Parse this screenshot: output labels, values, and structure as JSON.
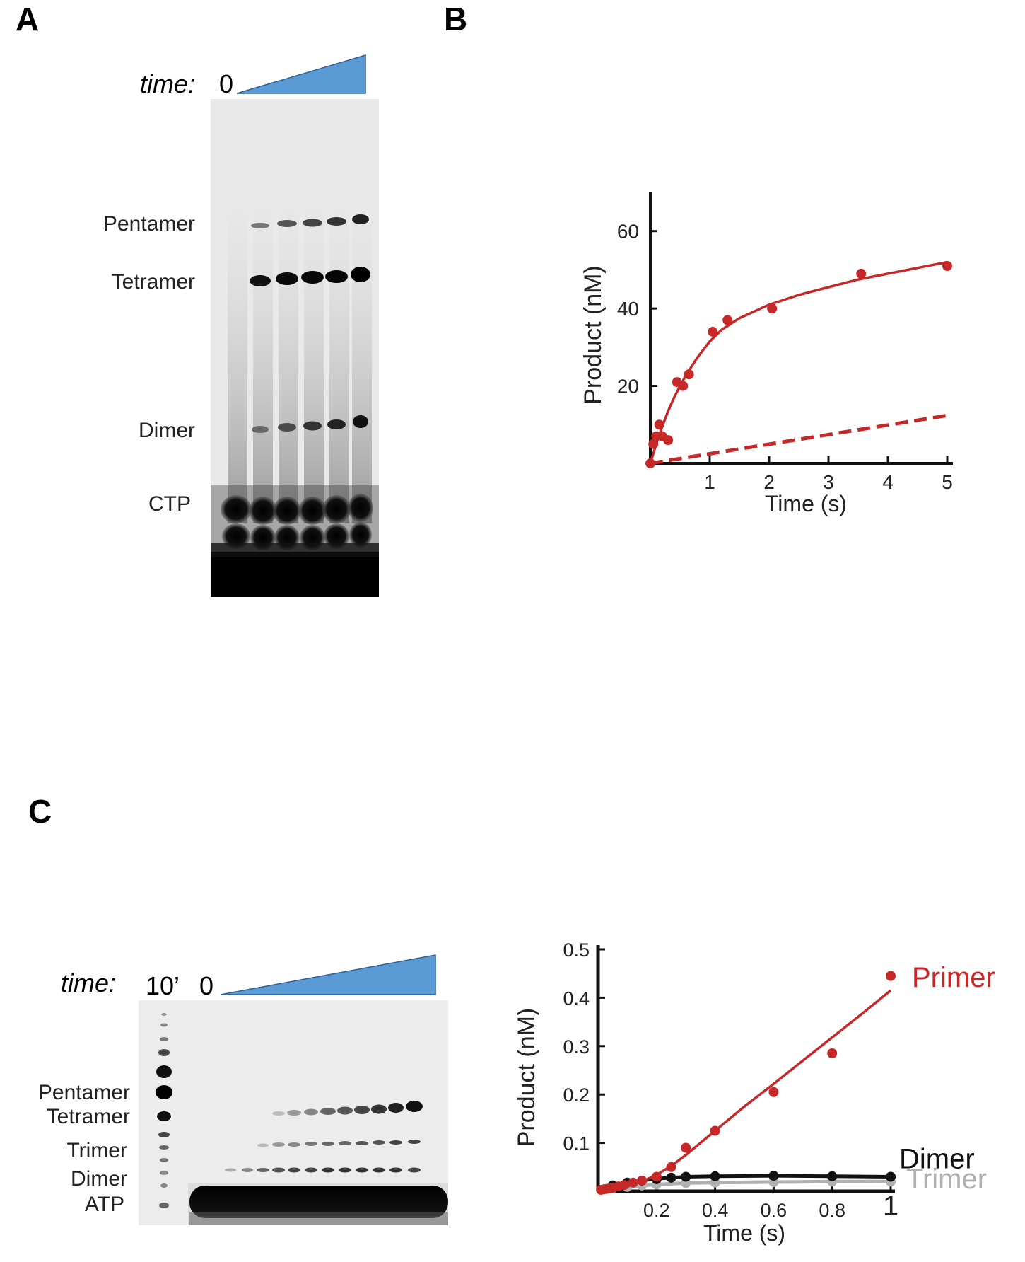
{
  "panels": {
    "a": "A",
    "b": "B",
    "c": "C"
  },
  "panel_a": {
    "time_label": "time:",
    "time_zero": "0",
    "bands": [
      "Pentamer",
      "Tetramer",
      "Dimer",
      "CTP"
    ]
  },
  "panel_c": {
    "time_label": "time:",
    "marker_label": "10’",
    "time_zero": "0",
    "bands": [
      "Pentamer",
      "Tetramer",
      "Trimer",
      "Dimer",
      "ATP"
    ]
  },
  "colors": {
    "red": "#c62828",
    "wedge": "#5b9bd5",
    "black": "#111111",
    "grey": "#b0b0b0"
  },
  "chart_data": [
    {
      "type": "scatter",
      "xlabel": "Time (s)",
      "ylabel": "Product (nM)",
      "xlim": [
        0,
        5
      ],
      "ylim": [
        0,
        70
      ],
      "xticks": [
        "1",
        "2",
        "3",
        "4",
        "5"
      ],
      "yticks": [
        "20",
        "40",
        "60"
      ],
      "series": [
        {
          "x": [
            0,
            0.05,
            0.1,
            0.15,
            0.2,
            0.3,
            0.45,
            0.55,
            0.65,
            1.05,
            1.3,
            2.05,
            3.55,
            5.0
          ],
          "y": [
            0,
            5,
            7,
            10,
            7,
            6,
            21,
            20,
            23,
            34,
            37,
            40,
            49,
            51
          ],
          "fit_x": [
            0,
            0.1,
            0.2,
            0.3,
            0.4,
            0.5,
            0.6,
            0.8,
            1.0,
            1.2,
            1.5,
            2.0,
            2.5,
            3.0,
            3.5,
            4.0,
            4.5,
            5.0
          ],
          "fit_y": [
            0,
            5,
            9.5,
            13.5,
            17,
            20,
            22.8,
            27.5,
            31.5,
            34.5,
            37.5,
            41,
            43.5,
            45.5,
            47.5,
            49,
            50.5,
            52
          ],
          "color": "#c62828"
        },
        {
          "x": [
            0,
            5.05
          ],
          "y": [
            0,
            12.5
          ],
          "style": "dashed",
          "color": "#c62828"
        }
      ]
    },
    {
      "type": "scatter",
      "xlabel": "Time (s)",
      "ylabel": "Product (nM)",
      "xlim": [
        0,
        1.0
      ],
      "ylim": [
        0,
        0.5
      ],
      "xticks": [
        "0.2",
        "0.4",
        "0.6",
        "0.8",
        "1"
      ],
      "yticks": [
        "0.1",
        "0.2",
        "0.3",
        "0.4",
        "0.5"
      ],
      "series": [
        {
          "name": "Primer",
          "color": "#c62828",
          "x": [
            0.01,
            0.02,
            0.03,
            0.04,
            0.05,
            0.07,
            0.09,
            0.12,
            0.15,
            0.2,
            0.25,
            0.3,
            0.4,
            0.6,
            0.8,
            1.0
          ],
          "y": [
            0.003,
            0.004,
            0.005,
            0.006,
            0.007,
            0.01,
            0.013,
            0.018,
            0.022,
            0.03,
            0.05,
            0.09,
            0.125,
            0.205,
            0.285,
            0.445
          ],
          "fit_x": [
            0,
            0.05,
            0.1,
            0.15,
            0.2,
            0.25,
            0.3,
            0.4,
            0.5,
            0.6,
            0.7,
            0.8,
            0.9,
            1.0
          ],
          "fit_y": [
            0,
            0.004,
            0.01,
            0.02,
            0.034,
            0.052,
            0.075,
            0.125,
            0.175,
            0.222,
            0.27,
            0.318,
            0.366,
            0.415
          ]
        },
        {
          "name": "Dimer",
          "color": "#111111",
          "x": [
            0.05,
            0.1,
            0.15,
            0.2,
            0.25,
            0.3,
            0.4,
            0.6,
            0.8,
            1.0
          ],
          "y": [
            0.012,
            0.018,
            0.022,
            0.025,
            0.028,
            0.03,
            0.031,
            0.032,
            0.031,
            0.03
          ],
          "fit_x": [
            0,
            0.1,
            0.2,
            0.3,
            0.4,
            0.6,
            0.8,
            1.0
          ],
          "fit_y": [
            0,
            0.018,
            0.026,
            0.03,
            0.031,
            0.032,
            0.031,
            0.03
          ]
        },
        {
          "name": "Trimer",
          "color": "#b0b0b0",
          "x": [
            0.05,
            0.1,
            0.15,
            0.2,
            0.3,
            0.4,
            0.6,
            0.8,
            1.0
          ],
          "y": [
            0.006,
            0.009,
            0.012,
            0.014,
            0.017,
            0.018,
            0.019,
            0.02,
            0.02
          ],
          "fit_x": [
            0,
            0.1,
            0.2,
            0.3,
            0.4,
            0.6,
            0.8,
            1.0
          ],
          "fit_y": [
            0,
            0.009,
            0.014,
            0.017,
            0.018,
            0.019,
            0.02,
            0.02
          ]
        }
      ]
    }
  ]
}
